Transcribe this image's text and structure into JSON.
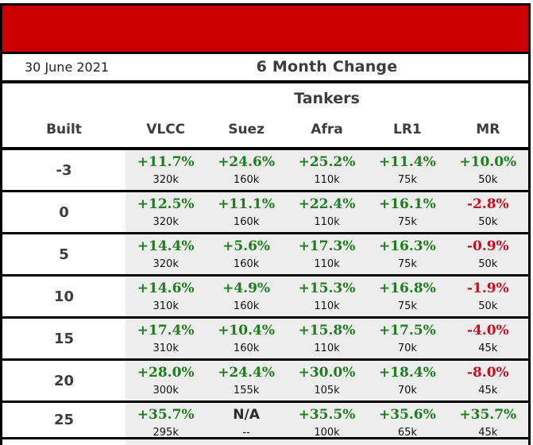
{
  "header": {
    "date": "30 June 2021",
    "title": "6 Month Change",
    "section_title": "Tankers"
  },
  "colors": {
    "banner_red": "#cc0000",
    "positive_green": "#1e7d1e",
    "negative_red": "#c5101f",
    "row_bg_gray": "#ededed",
    "border_black": "#000000",
    "header_text": "#3d3d3d"
  },
  "table": {
    "columns": [
      "Built",
      "VLCC",
      "Suez",
      "Afra",
      "LR1",
      "MR"
    ],
    "rows": [
      {
        "built": "-3",
        "cells": [
          {
            "pct": "+11.7%",
            "sub": "320k",
            "trend": "up"
          },
          {
            "pct": "+24.6%",
            "sub": "160k",
            "trend": "up"
          },
          {
            "pct": "+25.2%",
            "sub": "110k",
            "trend": "up"
          },
          {
            "pct": "+11.4%",
            "sub": "75k",
            "trend": "up"
          },
          {
            "pct": "+10.0%",
            "sub": "50k",
            "trend": "up"
          }
        ]
      },
      {
        "built": "0",
        "cells": [
          {
            "pct": "+12.5%",
            "sub": "320k",
            "trend": "up"
          },
          {
            "pct": "+11.1%",
            "sub": "160k",
            "trend": "up"
          },
          {
            "pct": "+22.4%",
            "sub": "110k",
            "trend": "up"
          },
          {
            "pct": "+16.1%",
            "sub": "75k",
            "trend": "up"
          },
          {
            "pct": "-2.8%",
            "sub": "50k",
            "trend": "down"
          }
        ]
      },
      {
        "built": "5",
        "cells": [
          {
            "pct": "+14.4%",
            "sub": "320k",
            "trend": "up"
          },
          {
            "pct": "+5.6%",
            "sub": "160k",
            "trend": "up"
          },
          {
            "pct": "+17.3%",
            "sub": "110k",
            "trend": "up"
          },
          {
            "pct": "+16.3%",
            "sub": "75k",
            "trend": "up"
          },
          {
            "pct": "-0.9%",
            "sub": "50k",
            "trend": "down"
          }
        ]
      },
      {
        "built": "10",
        "cells": [
          {
            "pct": "+14.6%",
            "sub": "310k",
            "trend": "up"
          },
          {
            "pct": "+4.9%",
            "sub": "160k",
            "trend": "up"
          },
          {
            "pct": "+15.3%",
            "sub": "110k",
            "trend": "up"
          },
          {
            "pct": "+16.8%",
            "sub": "75k",
            "trend": "up"
          },
          {
            "pct": "-1.9%",
            "sub": "50k",
            "trend": "down"
          }
        ]
      },
      {
        "built": "15",
        "cells": [
          {
            "pct": "+17.4%",
            "sub": "310k",
            "trend": "up"
          },
          {
            "pct": "+10.4%",
            "sub": "160k",
            "trend": "up"
          },
          {
            "pct": "+15.8%",
            "sub": "110k",
            "trend": "up"
          },
          {
            "pct": "+17.5%",
            "sub": "70k",
            "trend": "up"
          },
          {
            "pct": "-4.0%",
            "sub": "45k",
            "trend": "down"
          }
        ]
      },
      {
        "built": "20",
        "cells": [
          {
            "pct": "+28.0%",
            "sub": "300k",
            "trend": "up"
          },
          {
            "pct": "+24.4%",
            "sub": "155k",
            "trend": "up"
          },
          {
            "pct": "+30.0%",
            "sub": "105k",
            "trend": "up"
          },
          {
            "pct": "+18.4%",
            "sub": "70k",
            "trend": "up"
          },
          {
            "pct": "-8.0%",
            "sub": "45k",
            "trend": "down"
          }
        ]
      },
      {
        "built": "25",
        "cells": [
          {
            "pct": "+35.7%",
            "sub": "295k",
            "trend": "up"
          },
          {
            "pct": "N/A",
            "sub": "--",
            "trend": "na"
          },
          {
            "pct": "+35.5%",
            "sub": "100k",
            "trend": "up"
          },
          {
            "pct": "+35.6%",
            "sub": "65k",
            "trend": "up"
          },
          {
            "pct": "+35.7%",
            "sub": "45k",
            "trend": "up"
          }
        ]
      }
    ]
  }
}
